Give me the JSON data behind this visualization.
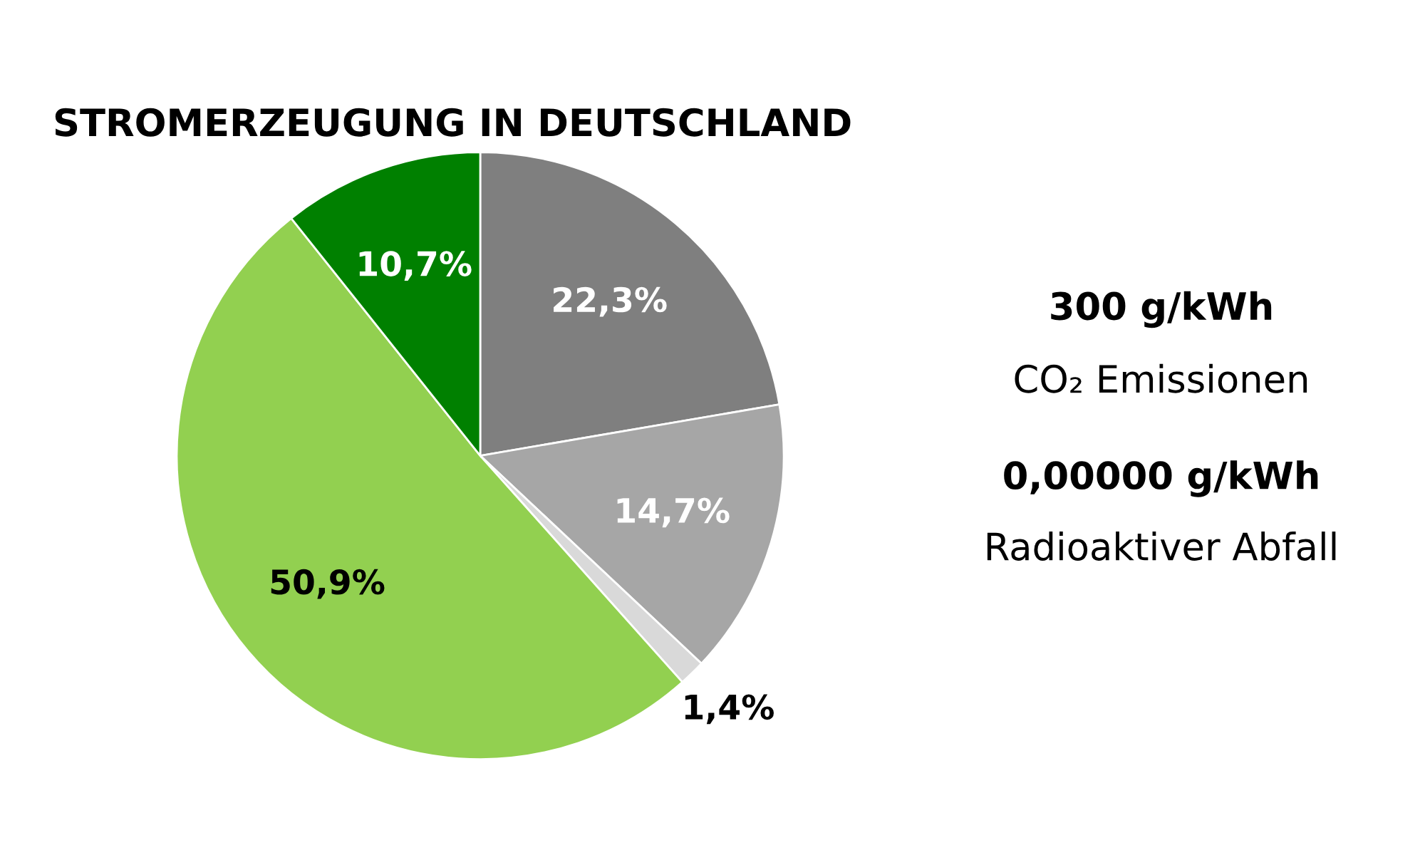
{
  "chart_data": {
    "type": "pie",
    "title": "STROMERZEUGUNG IN DEUTSCHLAND",
    "categories": [
      null,
      null,
      null,
      null,
      null
    ],
    "values": [
      22.3,
      14.7,
      1.4,
      50.9,
      10.7
    ],
    "value_labels": [
      "22,3%",
      "14,7%",
      "1,4%",
      "50,9%",
      "10,7%"
    ],
    "colors": [
      "#7f7f7f",
      "#a6a6a6",
      "#d9d9d9",
      "#92d050",
      "#008000"
    ],
    "annotations": [
      "300 g/kWh",
      "CO₂ Emissionen",
      "0,00000 g/kWh",
      "Radioaktiver Abfall"
    ]
  }
}
